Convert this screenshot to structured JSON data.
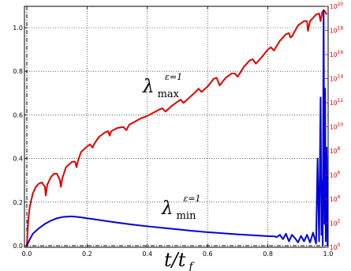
{
  "chart_data": {
    "type": "line",
    "title": "",
    "xlabel": {
      "main": "t/t",
      "sub": "f"
    },
    "ylabel": "",
    "xlim": [
      0,
      1
    ],
    "ylim": [
      0,
      1.1
    ],
    "y2lim_log10": [
      0,
      20
    ],
    "y2_scale": "log",
    "grid": true,
    "x_ticks": [
      "0.0",
      "0.2",
      "0.4",
      "0.6",
      "0.8",
      "1.0"
    ],
    "y_ticks": [
      "0.0",
      "0.2",
      "0.4",
      "0.6",
      "0.8",
      "1.0"
    ],
    "y2_ticks": [
      {
        "base": "10",
        "exp": "0"
      },
      {
        "base": "10",
        "exp": "2"
      },
      {
        "base": "10",
        "exp": "4"
      },
      {
        "base": "10",
        "exp": "6"
      },
      {
        "base": "10",
        "exp": "8"
      },
      {
        "base": "10",
        "exp": "10"
      },
      {
        "base": "10",
        "exp": "12"
      },
      {
        "base": "10",
        "exp": "14"
      },
      {
        "base": "10",
        "exp": "16"
      },
      {
        "base": "10",
        "exp": "18"
      },
      {
        "base": "10",
        "exp": "20"
      }
    ],
    "annotations": {
      "max": {
        "main": "λ",
        "sub": "max",
        "sup": "ε=1"
      },
      "min": {
        "main": "λ",
        "sub": "min",
        "sup": "ε=1"
      }
    },
    "series": [
      {
        "color": "#e00000",
        "x": [
          0.0,
          0.005,
          0.01,
          0.02,
          0.03,
          0.04,
          0.05,
          0.06,
          0.063,
          0.068,
          0.08,
          0.09,
          0.1,
          0.11,
          0.113,
          0.118,
          0.13,
          0.15,
          0.16,
          0.165,
          0.17,
          0.18,
          0.2,
          0.21,
          0.218,
          0.225,
          0.24,
          0.26,
          0.27,
          0.275,
          0.28,
          0.3,
          0.32,
          0.33,
          0.34,
          0.36,
          0.38,
          0.39,
          0.4,
          0.42,
          0.44,
          0.45,
          0.46,
          0.48,
          0.5,
          0.51,
          0.52,
          0.54,
          0.56,
          0.57,
          0.58,
          0.6,
          0.62,
          0.63,
          0.64,
          0.66,
          0.68,
          0.69,
          0.7,
          0.72,
          0.74,
          0.75,
          0.76,
          0.78,
          0.8,
          0.81,
          0.82,
          0.84,
          0.86,
          0.87,
          0.875,
          0.88,
          0.9,
          0.92,
          0.93,
          0.933,
          0.94,
          0.96,
          0.97,
          0.975,
          0.98,
          0.985,
          0.99,
          0.995
        ],
        "y": [
          0.0,
          0.12,
          0.18,
          0.24,
          0.27,
          0.285,
          0.29,
          0.27,
          0.23,
          0.28,
          0.315,
          0.33,
          0.33,
          0.3,
          0.27,
          0.31,
          0.36,
          0.385,
          0.385,
          0.36,
          0.39,
          0.43,
          0.455,
          0.465,
          0.45,
          0.47,
          0.5,
          0.52,
          0.525,
          0.505,
          0.525,
          0.54,
          0.545,
          0.53,
          0.555,
          0.57,
          0.585,
          0.59,
          0.595,
          0.61,
          0.625,
          0.63,
          0.615,
          0.64,
          0.66,
          0.67,
          0.655,
          0.68,
          0.705,
          0.72,
          0.705,
          0.73,
          0.765,
          0.77,
          0.735,
          0.77,
          0.79,
          0.79,
          0.775,
          0.82,
          0.85,
          0.855,
          0.835,
          0.865,
          0.9,
          0.91,
          0.895,
          0.94,
          0.97,
          0.975,
          0.955,
          0.96,
          1.01,
          1.03,
          1.03,
          0.985,
          1.03,
          1.06,
          1.065,
          1.03,
          1.07,
          1.08,
          1.075,
          1.06
        ]
      },
      {
        "color": "#0000e0",
        "x": [
          0.0,
          0.01,
          0.02,
          0.04,
          0.06,
          0.08,
          0.1,
          0.12,
          0.14,
          0.15,
          0.16,
          0.18,
          0.2,
          0.25,
          0.3,
          0.35,
          0.4,
          0.45,
          0.5,
          0.55,
          0.6,
          0.65,
          0.7,
          0.75,
          0.8,
          0.82,
          0.83,
          0.84,
          0.85,
          0.86,
          0.87,
          0.88,
          0.89,
          0.9,
          0.91,
          0.92,
          0.93,
          0.94,
          0.95,
          0.96,
          0.965,
          0.97,
          0.975,
          0.978,
          0.98,
          0.982,
          0.985,
          0.988,
          0.99,
          0.992,
          0.995,
          0.998
        ],
        "y": [
          0.0,
          0.03,
          0.055,
          0.08,
          0.1,
          0.115,
          0.126,
          0.132,
          0.134,
          0.134,
          0.133,
          0.13,
          0.126,
          0.116,
          0.106,
          0.097,
          0.089,
          0.082,
          0.075,
          0.068,
          0.062,
          0.057,
          0.052,
          0.048,
          0.044,
          0.043,
          0.04,
          0.05,
          0.03,
          0.055,
          0.02,
          0.05,
          0.035,
          0.015,
          0.045,
          0.02,
          0.05,
          0.015,
          0.06,
          0.01,
          0.4,
          0.02,
          0.68,
          0.05,
          0.3,
          0.0,
          1.08,
          0.1,
          0.72,
          0.02,
          0.45,
          0.0
        ]
      }
    ]
  }
}
